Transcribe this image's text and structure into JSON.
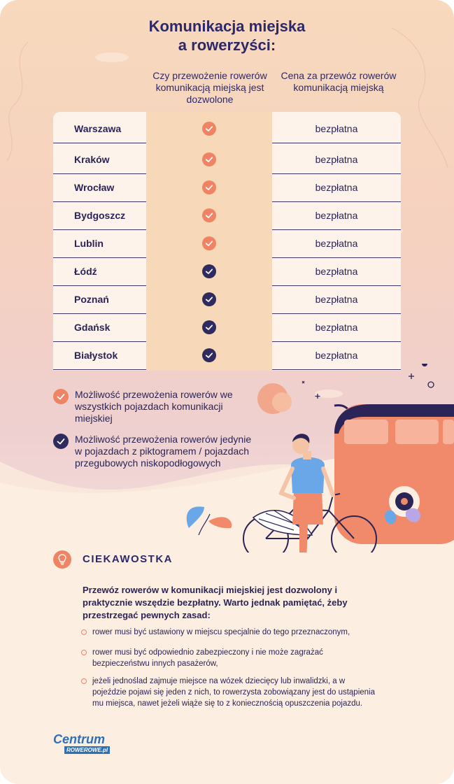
{
  "title": {
    "line1": "Komunikacja miejska",
    "line2": "a rowerzyści:"
  },
  "columns": {
    "allowed": "Czy przewożenie rowerów komunikacją miejską jest dozwolone",
    "price": "Cena za przewóz rowerów komunikacją miejską"
  },
  "rows": [
    {
      "city": "Warszawa",
      "status": "orange",
      "price": "bezpłatna"
    },
    {
      "city": "Kraków",
      "status": "orange",
      "price": "bezpłatna"
    },
    {
      "city": "Wrocław",
      "status": "orange",
      "price": "bezpłatna"
    },
    {
      "city": "Bydgoszcz",
      "status": "orange",
      "price": "bezpłatna"
    },
    {
      "city": "Lublin",
      "status": "orange",
      "price": "bezpłatna"
    },
    {
      "city": "Łódź",
      "status": "navy",
      "price": "bezpłatna"
    },
    {
      "city": "Poznań",
      "status": "navy",
      "price": "bezpłatna"
    },
    {
      "city": "Gdańsk",
      "status": "navy",
      "price": "bezpłatna"
    },
    {
      "city": "Białystok",
      "status": "navy",
      "price": "bezpłatna"
    }
  ],
  "legend": {
    "orange": "Możliwość przewożenia rowerów we wszystkich pojazdach komunikacji miejskiej",
    "navy": "Możliwość przewożenia rowerów jedynie w pojazdach z piktogramem / pojazdach przegubowych niskopodłogowych"
  },
  "tip": {
    "icon": "lightbulb-icon",
    "title": "CIEKAWOSTKA",
    "lead": "Przewóz rowerów w komunikacji miejskiej jest dozwolony i praktycznie wszędzie bezpłatny. Warto jednak pamiętać, żeby przestrzegać pewnych zasad:",
    "bullets": [
      "rower musi być ustawiony w miejscu specjalnie do tego przeznaczonym,",
      "rower musi być odpowiednio zabezpieczony i nie może zagrażać bezpieczeństwu innych pasażerów,",
      "jeżeli jednoślad zajmuje miejsce na wózek dziecięcy lub inwalidzki, a w pojeździe pojawi się jeden z nich, to rowerzysta zobowiązany jest do ustąpienia mu miejsca, nawet jeżeli wiąże się to z koniecznością opuszczenia pojazdu."
    ]
  },
  "logo": {
    "line1": "Centrum",
    "line2": "ROWEROWE.pl"
  },
  "colors": {
    "orange": "#ef8465",
    "navy": "#2f2b5e",
    "highlight": "#f7d8b8"
  }
}
